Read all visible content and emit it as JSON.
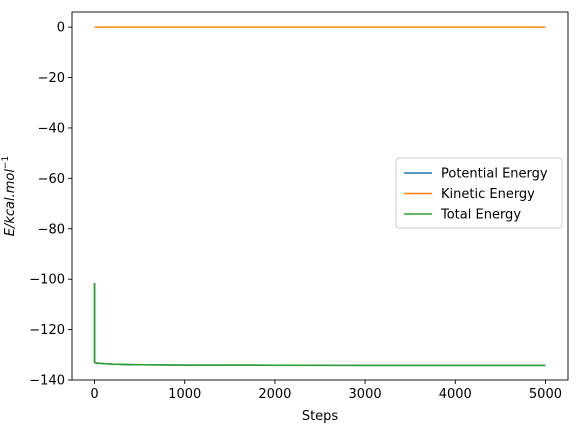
{
  "chart_data": {
    "type": "line",
    "xlabel": "Steps",
    "ylabel": {
      "prefix": "E/kcal.mol",
      "exponent": "−1"
    },
    "xlim": [
      -250,
      5250
    ],
    "ylim": [
      -140,
      6
    ],
    "xticks": [
      0,
      1000,
      2000,
      3000,
      4000,
      5000
    ],
    "xtick_labels": [
      "0",
      "1000",
      "2000",
      "3000",
      "4000",
      "5000"
    ],
    "yticks": [
      0,
      -20,
      -40,
      -60,
      -80,
      -100,
      -120,
      -140
    ],
    "ytick_labels": [
      "0",
      "−20",
      "−40",
      "−60",
      "−80",
      "−100",
      "−120",
      "−140"
    ],
    "grid": false,
    "legend_position": "center-right",
    "series": [
      {
        "name": "Potential Energy",
        "color": "#1f77b4",
        "x": [
          0,
          0,
          10,
          100,
          200,
          400,
          700,
          1000,
          2000,
          3000,
          4000,
          5000
        ],
        "y": [
          -101.5,
          -133.0,
          -133.2,
          -133.5,
          -133.7,
          -133.9,
          -134.0,
          -134.1,
          -134.15,
          -134.2,
          -134.2,
          -134.2
        ]
      },
      {
        "name": "Kinetic Energy",
        "color": "#ff7f0e",
        "x": [
          0,
          1000,
          2000,
          3000,
          4000,
          5000
        ],
        "y": [
          0,
          0,
          0,
          0,
          0,
          0
        ]
      },
      {
        "name": "Total Energy",
        "color": "#2ca02c",
        "x": [
          0,
          0,
          10,
          100,
          200,
          400,
          700,
          1000,
          2000,
          3000,
          4000,
          5000
        ],
        "y": [
          -101.5,
          -133.0,
          -133.2,
          -133.5,
          -133.7,
          -133.9,
          -134.0,
          -134.1,
          -134.15,
          -134.2,
          -134.2,
          -134.2
        ]
      }
    ]
  }
}
